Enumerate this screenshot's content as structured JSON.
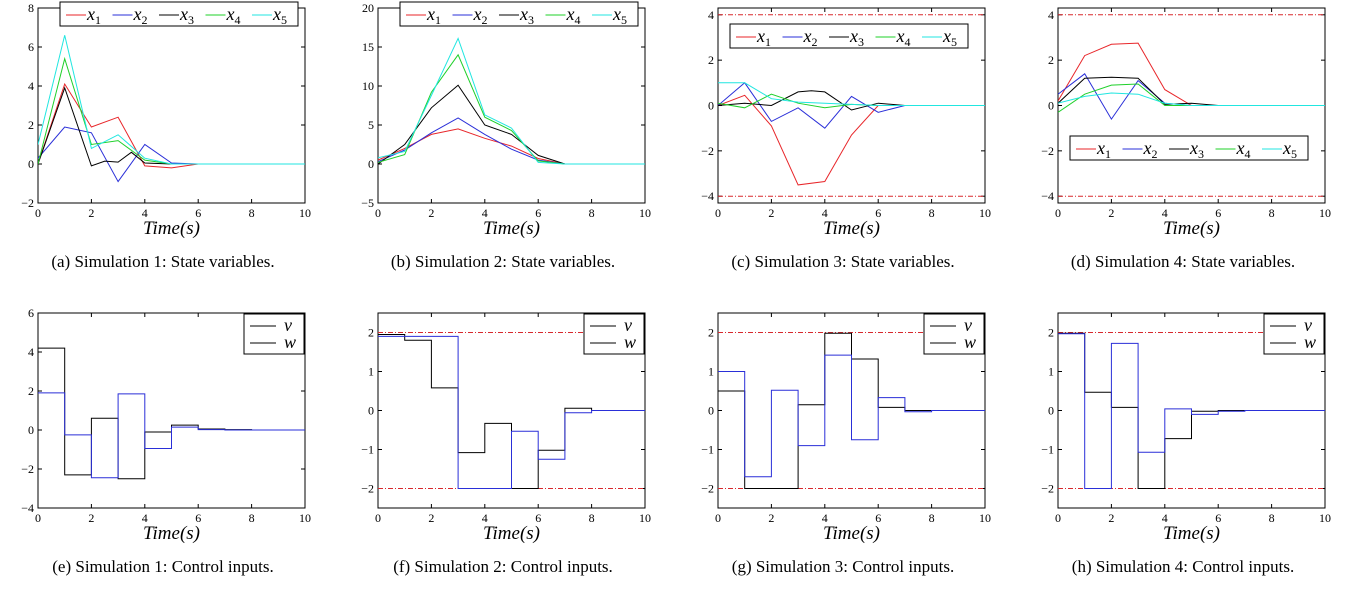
{
  "chart_data": [
    {
      "id": "a",
      "type": "line",
      "caption": "(a) Simulation 1: State variables.",
      "xlabel": "Time(s)",
      "xlim": [
        0,
        10
      ],
      "ylim": [
        -2,
        8
      ],
      "xticks": [
        "0",
        "2",
        "4",
        "6",
        "8",
        "10"
      ],
      "yticks": [
        "−2",
        "0",
        "2",
        "4",
        "6",
        "8"
      ],
      "legend": {
        "placement": "top",
        "orientation": "horizontal"
      },
      "bounds": [],
      "series": [
        {
          "name": "x1",
          "color": "#e8262a",
          "x": [
            0,
            1,
            2,
            3,
            4,
            5,
            6,
            7,
            8,
            9,
            10
          ],
          "y": [
            0,
            4.1,
            1.9,
            2.4,
            -0.1,
            -0.2,
            0,
            0,
            0,
            0,
            0
          ]
        },
        {
          "name": "x2",
          "color": "#2a2fd8",
          "x": [
            0,
            1,
            2,
            3,
            4,
            5,
            6,
            7,
            8,
            9,
            10
          ],
          "y": [
            0.3,
            1.9,
            1.6,
            -0.9,
            1.0,
            0.05,
            0,
            0,
            0,
            0,
            0
          ]
        },
        {
          "name": "x3",
          "color": "#000000",
          "x": [
            0,
            1,
            2,
            2.5,
            3,
            3.5,
            4,
            5,
            6,
            7,
            8,
            9,
            10
          ],
          "y": [
            0,
            3.9,
            -0.1,
            0.15,
            0.1,
            0.6,
            0.05,
            0,
            0,
            0,
            0,
            0,
            0
          ]
        },
        {
          "name": "x4",
          "color": "#1fd02a",
          "x": [
            0,
            1,
            2,
            3,
            4,
            5,
            6,
            7,
            8,
            9,
            10
          ],
          "y": [
            0,
            5.4,
            1.0,
            1.2,
            0.2,
            0,
            0,
            0,
            0,
            0,
            0
          ]
        },
        {
          "name": "x5",
          "color": "#21e6e0",
          "x": [
            0,
            1,
            2,
            3,
            4,
            5,
            6,
            7,
            8,
            9,
            10
          ],
          "y": [
            1.0,
            6.6,
            0.8,
            1.5,
            0.3,
            0,
            0,
            0,
            0,
            0,
            0
          ]
        }
      ]
    },
    {
      "id": "b",
      "type": "line",
      "caption": "(b) Simulation 2: State variables.",
      "xlabel": "Time(s)",
      "xlim": [
        0,
        10
      ],
      "ylim": [
        -5,
        20
      ],
      "xticks": [
        "0",
        "2",
        "4",
        "6",
        "8",
        "10"
      ],
      "yticks": [
        "−5",
        "0",
        "5",
        "10",
        "15",
        "20"
      ],
      "legend": {
        "placement": "top",
        "orientation": "horizontal"
      },
      "bounds": [],
      "series": [
        {
          "name": "x1",
          "color": "#e8262a",
          "x": [
            0,
            1,
            2,
            3,
            4,
            5,
            6,
            7,
            8,
            9,
            10
          ],
          "y": [
            0.5,
            2.0,
            3.8,
            4.5,
            3.3,
            2.3,
            0.7,
            0,
            0,
            0,
            0
          ]
        },
        {
          "name": "x2",
          "color": "#2a2fd8",
          "x": [
            0,
            1,
            2,
            3,
            4,
            5,
            6,
            7,
            8,
            9,
            10
          ],
          "y": [
            0.3,
            1.8,
            4.0,
            5.9,
            3.8,
            1.9,
            0.5,
            0,
            0,
            0,
            0
          ]
        },
        {
          "name": "x3",
          "color": "#000000",
          "x": [
            0,
            1,
            2,
            3,
            4,
            5,
            6,
            7,
            8,
            9,
            10
          ],
          "y": [
            0,
            2.5,
            7.2,
            10.1,
            5.0,
            3.8,
            1.1,
            0,
            0,
            0,
            0
          ]
        },
        {
          "name": "x4",
          "color": "#1fd02a",
          "x": [
            0,
            1,
            2,
            3,
            4,
            5,
            6,
            7,
            8,
            9,
            10
          ],
          "y": [
            0.2,
            1.2,
            9.2,
            14.0,
            6.0,
            4.3,
            0.4,
            0,
            0,
            0,
            0
          ]
        },
        {
          "name": "x5",
          "color": "#21e6e0",
          "x": [
            0,
            1,
            2,
            3,
            4,
            5,
            6,
            7,
            8,
            9,
            10
          ],
          "y": [
            0.8,
            1.6,
            8.8,
            16.1,
            6.3,
            4.6,
            0.2,
            0,
            0,
            0,
            0
          ]
        }
      ]
    },
    {
      "id": "c",
      "type": "line",
      "caption": "(c) Simulation 3: State variables.",
      "xlabel": "Time(s)",
      "xlim": [
        0,
        10
      ],
      "ylim": [
        -4.3,
        4.3
      ],
      "xticks": [
        "0",
        "2",
        "4",
        "6",
        "8",
        "10"
      ],
      "yticks": [
        "−4",
        "−2",
        "0",
        "2",
        "4"
      ],
      "ytickvals": [
        -4,
        -2,
        0,
        2,
        4
      ],
      "legend": {
        "placement": "upper",
        "orientation": "horizontal"
      },
      "bounds": [
        4,
        -4
      ],
      "series": [
        {
          "name": "x1",
          "color": "#e8262a",
          "x": [
            0,
            1,
            2,
            3,
            4,
            5,
            6,
            7,
            8,
            9,
            10
          ],
          "y": [
            0,
            0.45,
            -0.9,
            -3.5,
            -3.35,
            -1.3,
            0,
            0,
            0,
            0,
            0
          ]
        },
        {
          "name": "x2",
          "color": "#2a2fd8",
          "x": [
            0,
            1,
            2,
            3,
            4,
            5,
            6,
            7,
            8,
            9,
            10
          ],
          "y": [
            0,
            1.0,
            -0.7,
            -0.1,
            -1.0,
            0.4,
            -0.3,
            0,
            0,
            0,
            0
          ]
        },
        {
          "name": "x3",
          "color": "#000000",
          "x": [
            0,
            1,
            2,
            3,
            3.5,
            4,
            5,
            6,
            7,
            8,
            9,
            10
          ],
          "y": [
            0,
            0.1,
            0,
            0.6,
            0.65,
            0.6,
            -0.2,
            0.1,
            0,
            0,
            0,
            0
          ]
        },
        {
          "name": "x4",
          "color": "#1fd02a",
          "x": [
            0,
            1,
            2,
            3,
            4,
            5,
            6,
            7,
            8,
            9,
            10
          ],
          "y": [
            0.1,
            -0.1,
            0.5,
            0.1,
            -0.1,
            0.05,
            0,
            0,
            0,
            0,
            0
          ]
        },
        {
          "name": "x5",
          "color": "#21e6e0",
          "x": [
            0,
            1,
            2,
            3,
            4,
            5,
            6,
            7,
            8,
            9,
            10
          ],
          "y": [
            1.0,
            1.0,
            0.3,
            0.15,
            0.1,
            0.05,
            0,
            0,
            0,
            0,
            0
          ]
        }
      ]
    },
    {
      "id": "d",
      "type": "line",
      "caption": "(d) Simulation 4: State variables.",
      "xlabel": "Time(s)",
      "xlim": [
        0,
        10
      ],
      "ylim": [
        -4.3,
        4.3
      ],
      "xticks": [
        "0",
        "2",
        "4",
        "6",
        "8",
        "10"
      ],
      "yticks": [
        "−4",
        "−2",
        "0",
        "2",
        "4"
      ],
      "ytickvals": [
        -4,
        -2,
        0,
        2,
        4
      ],
      "legend": {
        "placement": "lower",
        "orientation": "horizontal"
      },
      "bounds": [
        4,
        -4
      ],
      "series": [
        {
          "name": "x1",
          "color": "#e8262a",
          "x": [
            0,
            1,
            2,
            3,
            4,
            5,
            6,
            7,
            8,
            9,
            10
          ],
          "y": [
            0.2,
            2.2,
            2.7,
            2.75,
            0.7,
            0,
            0,
            0,
            0,
            0,
            0
          ]
        },
        {
          "name": "x2",
          "color": "#2a2fd8",
          "x": [
            0,
            1,
            2,
            3,
            4,
            5,
            6,
            7,
            8,
            9,
            10
          ],
          "y": [
            0.5,
            1.4,
            -0.6,
            1.1,
            0.1,
            0,
            0,
            0,
            0,
            0,
            0
          ]
        },
        {
          "name": "x3",
          "color": "#000000",
          "x": [
            0,
            1,
            2,
            3,
            4,
            5,
            6,
            7,
            8,
            9,
            10
          ],
          "y": [
            0.1,
            1.2,
            1.25,
            1.2,
            0.05,
            0.1,
            0,
            0,
            0,
            0,
            0
          ]
        },
        {
          "name": "x4",
          "color": "#1fd02a",
          "x": [
            0,
            1,
            2,
            3,
            4,
            5,
            6,
            7,
            8,
            9,
            10
          ],
          "y": [
            -0.3,
            0.5,
            0.9,
            0.95,
            0,
            0,
            0,
            0,
            0,
            0,
            0
          ]
        },
        {
          "name": "x5",
          "color": "#21e6e0",
          "x": [
            0,
            1,
            2,
            3,
            4,
            5,
            6,
            7,
            8,
            9,
            10
          ],
          "y": [
            0.1,
            0.4,
            0.55,
            0.5,
            0.1,
            0,
            0,
            0,
            0,
            0,
            0
          ]
        }
      ]
    },
    {
      "id": "e",
      "type": "line",
      "step": true,
      "caption": "(e) Simulation 1: Control inputs.",
      "xlabel": "Time(s)",
      "xlim": [
        0,
        10
      ],
      "ylim": [
        -4,
        6
      ],
      "xticks": [
        "0",
        "2",
        "4",
        "6",
        "8",
        "10"
      ],
      "yticks": [
        "−4",
        "−2",
        "0",
        "2",
        "4",
        "6"
      ],
      "legend": {
        "placement": "top-right",
        "orientation": "vertical"
      },
      "bounds": [],
      "series": [
        {
          "name": "v",
          "color": "#000000",
          "values": [
            4.2,
            -2.3,
            0.6,
            -2.5,
            -0.1,
            0.25,
            0.05,
            0.02,
            0,
            0
          ]
        },
        {
          "name": "w",
          "color": "#2a2fd8",
          "values": [
            1.9,
            -0.25,
            -2.45,
            1.85,
            -0.95,
            0.15,
            0.02,
            0,
            0,
            0
          ]
        }
      ]
    },
    {
      "id": "f",
      "type": "line",
      "step": true,
      "caption": "(f) Simulation 2: Control inputs.",
      "xlabel": "Time(s)",
      "xlim": [
        0,
        10
      ],
      "ylim": [
        -2.5,
        2.5
      ],
      "xticks": [
        "0",
        "2",
        "4",
        "6",
        "8",
        "10"
      ],
      "yticks": [
        "−2",
        "−1",
        "0",
        "1",
        "2"
      ],
      "ytickvals": [
        -2,
        -1,
        0,
        1,
        2
      ],
      "legend": {
        "placement": "top-right",
        "orientation": "vertical"
      },
      "bounds": [
        2,
        -2
      ],
      "series": [
        {
          "name": "v",
          "color": "#000000",
          "values": [
            1.95,
            1.8,
            0.58,
            -1.08,
            -0.33,
            -2.0,
            -1.02,
            0.06,
            0,
            0
          ]
        },
        {
          "name": "w",
          "color": "#2a2fd8",
          "values": [
            1.9,
            1.9,
            1.9,
            -2.0,
            -2.0,
            -0.53,
            -1.25,
            -0.06,
            0,
            0
          ]
        }
      ]
    },
    {
      "id": "g",
      "type": "line",
      "step": true,
      "caption": "(g) Simulation 3: Control inputs.",
      "xlabel": "Time(s)",
      "xlim": [
        0,
        10
      ],
      "ylim": [
        -2.5,
        2.5
      ],
      "xticks": [
        "0",
        "2",
        "4",
        "6",
        "8",
        "10"
      ],
      "yticks": [
        "−2",
        "−1",
        "0",
        "1",
        "2"
      ],
      "ytickvals": [
        -2,
        -1,
        0,
        1,
        2
      ],
      "legend": {
        "placement": "top-right",
        "orientation": "vertical"
      },
      "bounds": [
        2,
        -2
      ],
      "series": [
        {
          "name": "v",
          "color": "#000000",
          "values": [
            0.5,
            -2.0,
            -2.0,
            0.15,
            1.98,
            1.32,
            0.08,
            0,
            0,
            0
          ]
        },
        {
          "name": "w",
          "color": "#2a2fd8",
          "values": [
            1.0,
            -1.7,
            0.52,
            -0.9,
            1.42,
            -0.75,
            0.33,
            -0.03,
            0,
            0
          ]
        }
      ]
    },
    {
      "id": "h",
      "type": "line",
      "step": true,
      "caption": "(h) Simulation 4: Control inputs.",
      "xlabel": "Time(s)",
      "xlim": [
        0,
        10
      ],
      "ylim": [
        -2.5,
        2.5
      ],
      "xticks": [
        "0",
        "2",
        "4",
        "6",
        "8",
        "10"
      ],
      "yticks": [
        "−2",
        "−1",
        "0",
        "1",
        "2"
      ],
      "ytickvals": [
        -2,
        -1,
        0,
        1,
        2
      ],
      "legend": {
        "placement": "top-right",
        "orientation": "vertical"
      },
      "bounds": [
        2,
        -2
      ],
      "series": [
        {
          "name": "v",
          "color": "#000000",
          "values": [
            1.98,
            0.47,
            0.08,
            -2.0,
            -0.72,
            -0.02,
            0,
            0,
            0,
            0
          ]
        },
        {
          "name": "w",
          "color": "#2a2fd8",
          "values": [
            1.97,
            -2.0,
            1.72,
            -1.07,
            0.04,
            -0.1,
            -0.02,
            0,
            0,
            0
          ]
        }
      ]
    }
  ],
  "bound_color": "#d8282d"
}
